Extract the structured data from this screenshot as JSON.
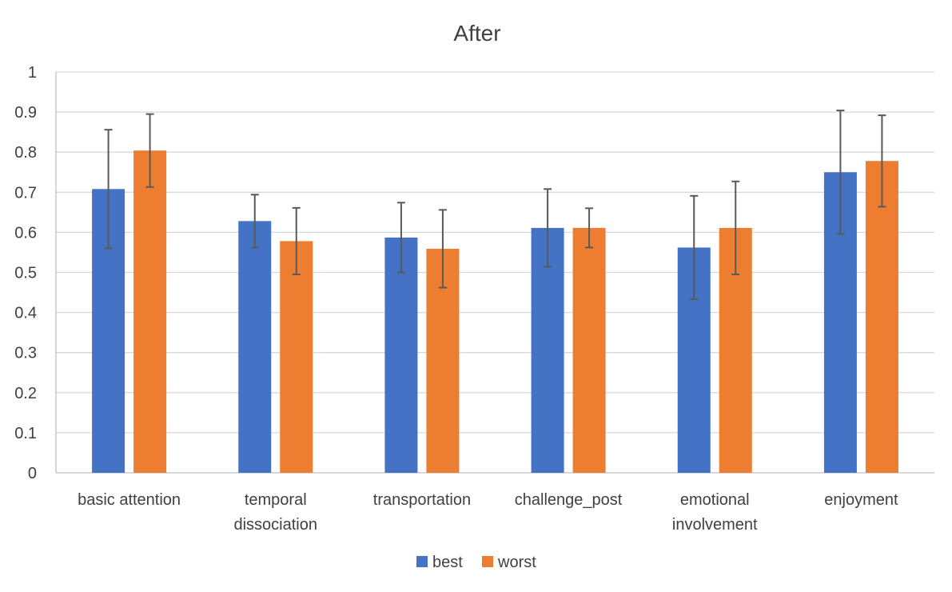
{
  "chart_data": {
    "type": "bar",
    "title": "After",
    "xlabel": "",
    "ylabel": "",
    "ylim": [
      0,
      1
    ],
    "yticks": [
      "0",
      "0.1",
      "0.2",
      "0.3",
      "0.4",
      "0.5",
      "0.6",
      "0.7",
      "0.8",
      "0.9",
      "1"
    ],
    "grid": true,
    "legend": "bottom",
    "categories": [
      [
        "basic attention"
      ],
      [
        "temporal",
        "dissociation"
      ],
      [
        "transportation"
      ],
      [
        "challenge_post"
      ],
      [
        "emotional",
        "involvement"
      ],
      [
        "enjoyment"
      ]
    ],
    "series": [
      {
        "name": "best",
        "color": "#4472C4",
        "values": [
          0.708,
          0.628,
          0.587,
          0.611,
          0.562,
          0.75
        ],
        "error": [
          0.148,
          0.066,
          0.087,
          0.097,
          0.129,
          0.154
        ]
      },
      {
        "name": "worst",
        "color": "#ED7D31",
        "values": [
          0.804,
          0.578,
          0.559,
          0.611,
          0.611,
          0.778
        ],
        "error": [
          0.091,
          0.083,
          0.097,
          0.049,
          0.116,
          0.114
        ]
      }
    ]
  }
}
